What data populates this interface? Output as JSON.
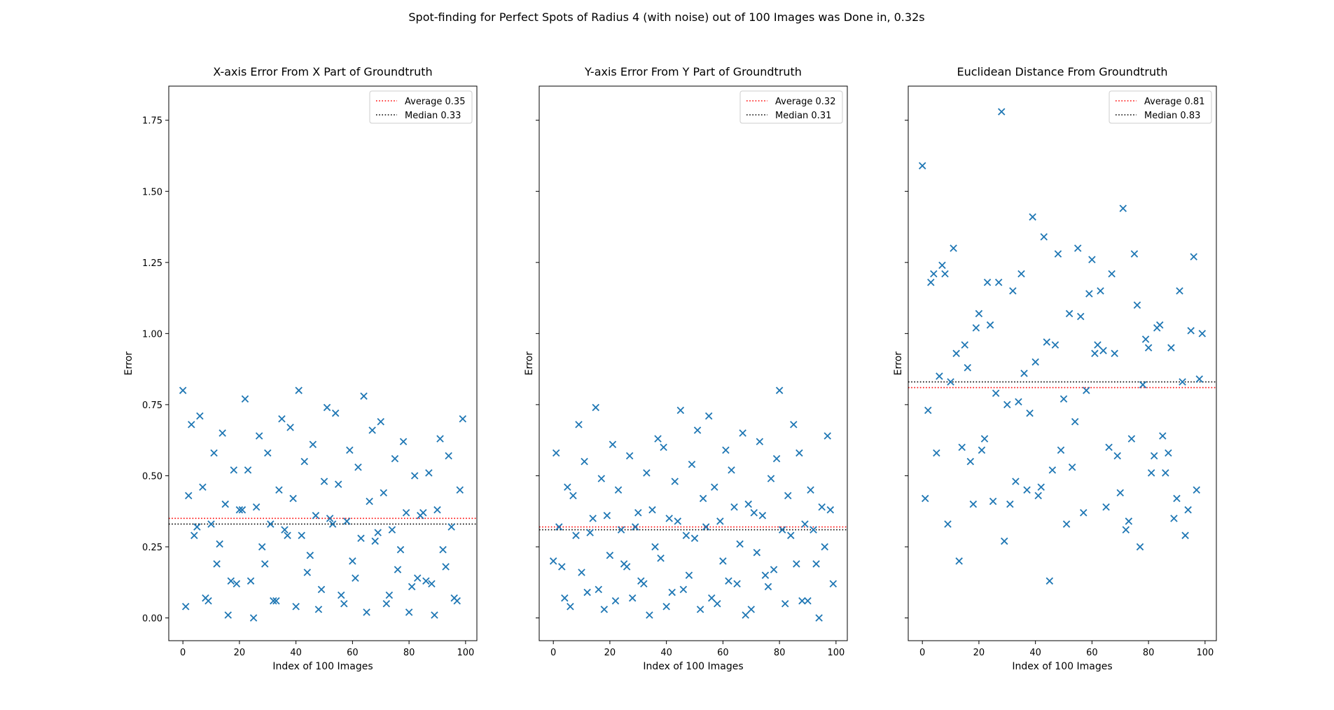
{
  "suptitle": "Spot-finding for Perfect Spots of Radius 4 (with noise) out of 100 Images was Done in, 0.32s",
  "chart_data": [
    {
      "type": "scatter",
      "title": "X-axis Error From X Part of Groundtruth",
      "xlabel": "Index of 100 Images",
      "ylabel": "Error",
      "xlim": [
        -5,
        104
      ],
      "ylim": [
        -0.08,
        1.87
      ],
      "xticks": [
        0,
        20,
        40,
        60,
        80,
        100
      ],
      "yticks": [
        0.0,
        0.25,
        0.5,
        0.75,
        1.0,
        1.25,
        1.5,
        1.75
      ],
      "ytick_labels": [
        "0.00",
        "0.25",
        "0.50",
        "0.75",
        "1.00",
        "1.25",
        "1.50",
        "1.75"
      ],
      "marker": "x",
      "marker_color": "#1f77b4",
      "legend_position": "upper right",
      "reference_lines": [
        {
          "label": "Average 0.35",
          "value": 0.35,
          "color": "#ff0000",
          "style": "dotted"
        },
        {
          "label": "Median 0.33",
          "value": 0.33,
          "color": "#000000",
          "style": "dotted"
        }
      ],
      "y_values": [
        0.8,
        0.04,
        0.43,
        0.68,
        0.29,
        0.32,
        0.71,
        0.46,
        0.07,
        0.06,
        0.33,
        0.58,
        0.19,
        0.26,
        0.65,
        0.4,
        0.01,
        0.13,
        0.52,
        0.12,
        0.38,
        0.38,
        0.77,
        0.52,
        0.13,
        0.0,
        0.39,
        0.64,
        0.25,
        0.19,
        0.58,
        0.33,
        0.06,
        0.06,
        0.45,
        0.7,
        0.31,
        0.29,
        0.67,
        0.42,
        0.04,
        0.8,
        0.29,
        0.55,
        0.16,
        0.22,
        0.61,
        0.36,
        0.03,
        0.1,
        0.48,
        0.74,
        0.35,
        0.33,
        0.72,
        0.47,
        0.08,
        0.05,
        0.34,
        0.59,
        0.2,
        0.14,
        0.53,
        0.28,
        0.78,
        0.02,
        0.41,
        0.66,
        0.27,
        0.3,
        0.69,
        0.44,
        0.05,
        0.08,
        0.31,
        0.56,
        0.17,
        0.24,
        0.62,
        0.37,
        0.02,
        0.11,
        0.5,
        0.14,
        0.36,
        0.37,
        0.13,
        0.51,
        0.12,
        0.01,
        0.38,
        0.63,
        0.24,
        0.18,
        0.57,
        0.32,
        0.07,
        0.06,
        0.45,
        0.7
      ]
    },
    {
      "type": "scatter",
      "title": "Y-axis Error From Y Part of Groundtruth",
      "xlabel": "Index of 100 Images",
      "ylabel": "Error",
      "xlim": [
        -5,
        104
      ],
      "ylim": [
        -0.08,
        1.87
      ],
      "xticks": [
        0,
        20,
        40,
        60,
        80,
        100
      ],
      "marker": "x",
      "marker_color": "#1f77b4",
      "legend_position": "upper right",
      "reference_lines": [
        {
          "label": "Average 0.32",
          "value": 0.32,
          "color": "#ff0000",
          "style": "dotted"
        },
        {
          "label": "Median 0.31",
          "value": 0.31,
          "color": "#000000",
          "style": "dotted"
        }
      ],
      "y_values": [
        0.2,
        0.58,
        0.32,
        0.18,
        0.07,
        0.46,
        0.04,
        0.43,
        0.29,
        0.68,
        0.16,
        0.55,
        0.09,
        0.3,
        0.35,
        0.74,
        0.1,
        0.49,
        0.03,
        0.36,
        0.22,
        0.61,
        0.06,
        0.45,
        0.31,
        0.19,
        0.18,
        0.57,
        0.07,
        0.32,
        0.37,
        0.13,
        0.12,
        0.51,
        0.01,
        0.38,
        0.25,
        0.63,
        0.21,
        0.6,
        0.04,
        0.35,
        0.09,
        0.48,
        0.34,
        0.73,
        0.1,
        0.29,
        0.15,
        0.54,
        0.28,
        0.66,
        0.03,
        0.42,
        0.32,
        0.71,
        0.07,
        0.46,
        0.05,
        0.34,
        0.2,
        0.59,
        0.13,
        0.52,
        0.39,
        0.12,
        0.26,
        0.65,
        0.01,
        0.4,
        0.03,
        0.37,
        0.23,
        0.62,
        0.36,
        0.15,
        0.11,
        0.49,
        0.17,
        0.56,
        0.8,
        0.31,
        0.05,
        0.43,
        0.29,
        0.68,
        0.19,
        0.58,
        0.06,
        0.33,
        0.06,
        0.45,
        0.31,
        0.19,
        0.0,
        0.39,
        0.25,
        0.64,
        0.38,
        0.12
      ]
    },
    {
      "type": "scatter",
      "title": "Euclidean Distance From Groundtruth",
      "xlabel": "Index of 100 Images",
      "ylabel": "Error",
      "xlim": [
        -5,
        104
      ],
      "ylim": [
        -0.08,
        1.87
      ],
      "xticks": [
        0,
        20,
        40,
        60,
        80,
        100
      ],
      "marker": "x",
      "marker_color": "#1f77b4",
      "legend_position": "upper right",
      "reference_lines": [
        {
          "label": "Average 0.81",
          "value": 0.81,
          "color": "#ff0000",
          "style": "dotted"
        },
        {
          "label": "Median 0.83",
          "value": 0.83,
          "color": "#000000",
          "style": "dotted"
        }
      ],
      "y_values": [
        1.59,
        0.42,
        0.73,
        1.18,
        1.21,
        0.58,
        0.85,
        1.24,
        1.21,
        0.33,
        0.83,
        1.3,
        0.93,
        0.2,
        0.6,
        0.96,
        0.88,
        0.55,
        0.4,
        1.02,
        1.07,
        0.59,
        0.63,
        1.18,
        1.03,
        0.41,
        0.79,
        1.18,
        1.78,
        0.27,
        0.75,
        0.4,
        1.15,
        0.48,
        0.76,
        1.21,
        0.86,
        0.45,
        0.72,
        1.41,
        0.9,
        0.43,
        0.46,
        1.34,
        0.97,
        0.13,
        0.52,
        0.96,
        1.28,
        0.59,
        0.77,
        0.33,
        1.07,
        0.53,
        0.69,
        1.3,
        1.06,
        0.37,
        0.8,
        1.14,
        1.26,
        0.93,
        0.96,
        1.15,
        0.94,
        0.39,
        0.6,
        1.21,
        0.93,
        0.57,
        0.44,
        1.44,
        0.31,
        0.34,
        0.63,
        1.28,
        1.1,
        0.25,
        0.82,
        0.98,
        0.95,
        0.51,
        0.57,
        1.02,
        1.03,
        0.64,
        0.51,
        0.58,
        0.95,
        0.35,
        0.42,
        1.15,
        0.83,
        0.29,
        0.38,
        1.01,
        1.27,
        0.45,
        0.84,
        1.0
      ]
    }
  ]
}
